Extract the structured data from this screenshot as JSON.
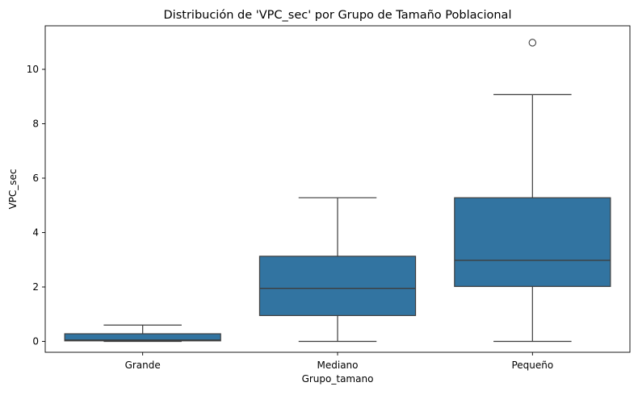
{
  "chart_data": {
    "type": "box",
    "title": "Distribución de 'VPC_sec' por Grupo de Tamaño Poblacional",
    "xlabel": "Grupo_tamano",
    "ylabel": "VPC_sec",
    "categories": [
      "Grande",
      "Mediano",
      "Pequeño"
    ],
    "ylim": [
      -0.4,
      11.6
    ],
    "yticks": [
      0,
      2,
      4,
      6,
      8,
      10
    ],
    "grid": false,
    "box_color": "#3274a1",
    "line_color": "#3d3d3d",
    "boxes": [
      {
        "category": "Grande",
        "whisker_low": 0.0,
        "q1": 0.02,
        "median": 0.05,
        "q3": 0.28,
        "whisker_high": 0.6,
        "outliers": []
      },
      {
        "category": "Mediano",
        "whisker_low": 0.0,
        "q1": 0.95,
        "median": 1.95,
        "q3": 3.13,
        "whisker_high": 5.28,
        "outliers": []
      },
      {
        "category": "Pequeño",
        "whisker_low": 0.0,
        "q1": 2.02,
        "median": 2.98,
        "q3": 5.28,
        "whisker_high": 9.07,
        "outliers": [
          10.98
        ]
      }
    ]
  }
}
